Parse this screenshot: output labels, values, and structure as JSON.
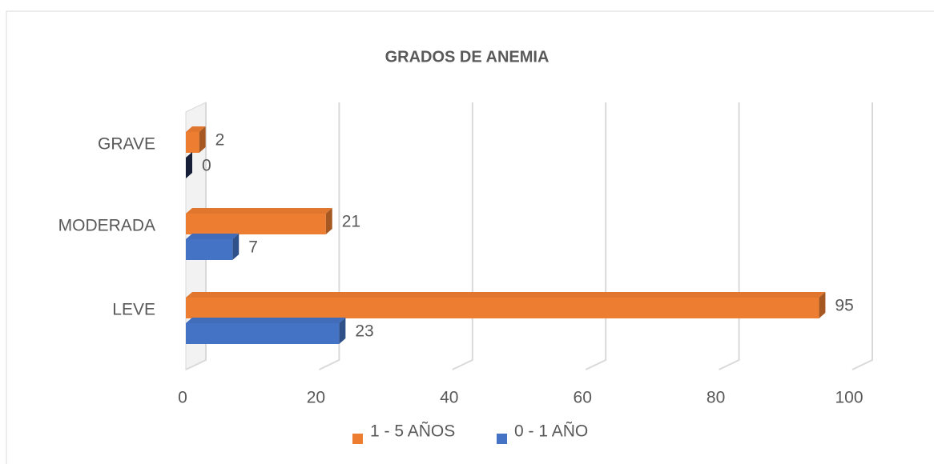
{
  "chart_data": {
    "type": "bar3d_horizontal",
    "title": "GRADOS DE ANEMIA",
    "categories": [
      "GRAVE",
      "MODERADA",
      "LEVE"
    ],
    "series": [
      {
        "name": "1 - 5 AÑOS",
        "color": "#ed7d31",
        "values": [
          2,
          21,
          95
        ]
      },
      {
        "name": "0 - 1 AÑO",
        "color": "#4472c4",
        "values": [
          0,
          7,
          23
        ]
      }
    ],
    "xlim": [
      0,
      100
    ],
    "xticks": [
      0,
      20,
      40,
      60,
      80,
      100
    ],
    "grid": true,
    "legend": "bottom"
  }
}
